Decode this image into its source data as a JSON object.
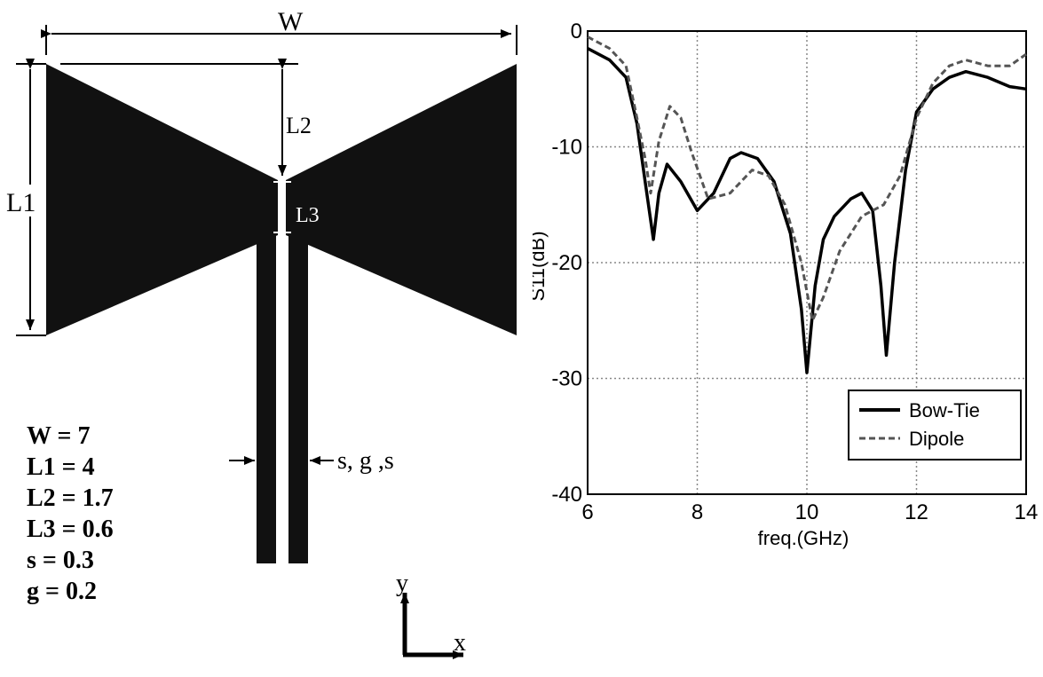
{
  "diagram": {
    "labels": {
      "W": "W",
      "L1": "L1",
      "L2": "L2",
      "L3": "L3",
      "feed": "s, g ,s",
      "axis_y": "y",
      "axis_x": "x"
    },
    "params": [
      "W = 7",
      "L1 = 4",
      "L2 = 1.7",
      "L3 = 0.6",
      "s = 0.3",
      "g = 0.2"
    ]
  },
  "chart_data": {
    "type": "line",
    "xlabel": "freq.(GHz)",
    "ylabel": "S11(dB)",
    "xlim": [
      6,
      14
    ],
    "ylim": [
      -40,
      0
    ],
    "xticks": [
      6,
      8,
      10,
      12,
      14
    ],
    "yticks": [
      0,
      -10,
      -20,
      -30,
      -40
    ],
    "grid": true,
    "legend_position": "bottom-right",
    "series": [
      {
        "name": "Bow-Tie",
        "style": "solid",
        "x": [
          6.0,
          6.4,
          6.7,
          6.9,
          7.05,
          7.2,
          7.3,
          7.45,
          7.7,
          8.0,
          8.3,
          8.6,
          8.8,
          9.1,
          9.4,
          9.7,
          9.9,
          10.0,
          10.15,
          10.3,
          10.5,
          10.8,
          11.0,
          11.2,
          11.35,
          11.45,
          11.6,
          11.8,
          12.0,
          12.3,
          12.6,
          12.9,
          13.3,
          13.7,
          14.0
        ],
        "y": [
          -1.5,
          -2.5,
          -4.0,
          -8.0,
          -13.0,
          -18.0,
          -14.0,
          -11.5,
          -13.0,
          -15.5,
          -14.0,
          -11.0,
          -10.5,
          -11.0,
          -13.0,
          -17.5,
          -24.0,
          -29.5,
          -22.0,
          -18.0,
          -16.0,
          -14.5,
          -14.0,
          -15.5,
          -22.0,
          -28.0,
          -20.0,
          -12.0,
          -7.0,
          -5.0,
          -4.0,
          -3.5,
          -4.0,
          -4.8,
          -5.0
        ]
      },
      {
        "name": "Dipole",
        "style": "dashed",
        "x": [
          6.0,
          6.4,
          6.7,
          6.9,
          7.05,
          7.15,
          7.3,
          7.5,
          7.7,
          7.9,
          8.2,
          8.6,
          9.0,
          9.3,
          9.6,
          9.9,
          10.1,
          10.3,
          10.6,
          11.0,
          11.4,
          11.7,
          12.0,
          12.3,
          12.6,
          12.9,
          13.3,
          13.7,
          14.0
        ],
        "y": [
          -0.5,
          -1.5,
          -3.0,
          -7.5,
          -11.0,
          -14.0,
          -9.5,
          -6.5,
          -7.5,
          -10.5,
          -14.5,
          -14.0,
          -12.0,
          -12.5,
          -15.0,
          -20.0,
          -25.0,
          -23.0,
          -19.0,
          -16.0,
          -15.0,
          -12.5,
          -7.5,
          -4.5,
          -3.0,
          -2.5,
          -3.0,
          -3.0,
          -2.0
        ]
      }
    ]
  }
}
